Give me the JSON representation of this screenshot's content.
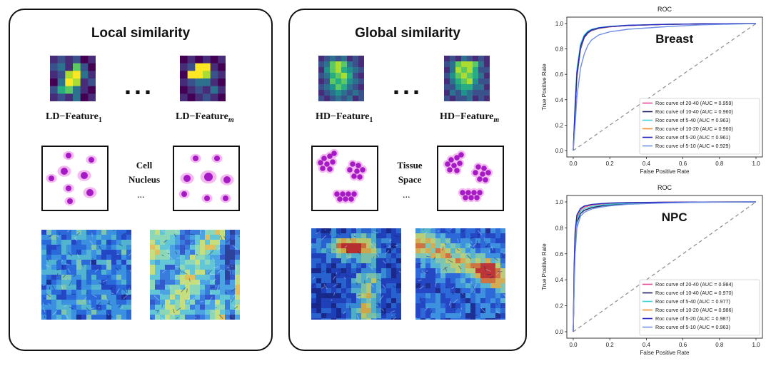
{
  "panels": {
    "local": {
      "title": "Local similarity",
      "dots": "...",
      "feature_label_prefix": "LD−Feature",
      "sub1": "1",
      "subm": "m",
      "mid_lines": [
        "Cell",
        "Nucleus"
      ],
      "mid_ellipsis": "..."
    },
    "global": {
      "title": "Global similarity",
      "dots": "...",
      "feature_label_prefix": "HD−Feature",
      "sub1": "1",
      "subm": "m",
      "mid_lines": [
        "Tissue",
        "Space"
      ],
      "mid_ellipsis": "..."
    }
  },
  "colors": {
    "s2040": "#e7489a",
    "s1040": "#1b1b5e",
    "s540": "#39d4dc",
    "s1020": "#f08a2c",
    "s520": "#1f22c9",
    "s510": "#6f8fe3",
    "diag": "#8c8c8c",
    "nucleus": "#a61ac6",
    "cytoplasm": "#f3b9f0"
  },
  "chart_data": [
    {
      "type": "line",
      "title": "ROC",
      "annotation": "Breast",
      "xlabel": "False Positive Rate",
      "ylabel": "True Positive Rate",
      "xlim": [
        0,
        1
      ],
      "ylim": [
        0,
        1
      ],
      "xticks": [
        "0.0",
        "0.2",
        "0.4",
        "0.6",
        "0.8",
        "1.0"
      ],
      "yticks": [
        "0.0",
        "0.2",
        "0.4",
        "0.6",
        "0.8",
        "1.0"
      ],
      "legend_position": "lower-right",
      "series": [
        {
          "name": "Roc curve of 20-40 (AUC = 0.959)",
          "color_key": "s2040",
          "x": [
            0,
            0.01,
            0.02,
            0.04,
            0.06,
            0.08,
            0.1,
            0.14,
            0.2,
            0.3,
            0.5,
            0.7,
            1.0
          ],
          "y": [
            0,
            0.35,
            0.62,
            0.82,
            0.9,
            0.93,
            0.95,
            0.965,
            0.975,
            0.985,
            0.993,
            0.998,
            1.0
          ]
        },
        {
          "name": "Roc curve of 10-40 (AUC = 0.960)",
          "color_key": "s1040",
          "x": [
            0,
            0.01,
            0.02,
            0.04,
            0.06,
            0.08,
            0.1,
            0.14,
            0.2,
            0.3,
            0.5,
            0.7,
            1.0
          ],
          "y": [
            0,
            0.3,
            0.58,
            0.8,
            0.89,
            0.925,
            0.945,
            0.962,
            0.974,
            0.985,
            0.993,
            0.998,
            1.0
          ]
        },
        {
          "name": "Roc curve of 5-40 (AUC = 0.963)",
          "color_key": "s540",
          "x": [
            0,
            0.01,
            0.02,
            0.04,
            0.06,
            0.08,
            0.1,
            0.14,
            0.2,
            0.3,
            0.5,
            0.7,
            1.0
          ],
          "y": [
            0,
            0.38,
            0.64,
            0.84,
            0.91,
            0.94,
            0.955,
            0.968,
            0.978,
            0.987,
            0.994,
            0.998,
            1.0
          ]
        },
        {
          "name": "Roc curve of 10-20 (AUC = 0.960)",
          "color_key": "s1020",
          "x": [
            0,
            0.01,
            0.02,
            0.04,
            0.06,
            0.08,
            0.1,
            0.14,
            0.2,
            0.3,
            0.5,
            0.7,
            1.0
          ],
          "y": [
            0,
            0.33,
            0.6,
            0.81,
            0.9,
            0.93,
            0.948,
            0.964,
            0.975,
            0.985,
            0.993,
            0.998,
            1.0
          ]
        },
        {
          "name": "Roc curve of 5-20 (AUC = 0.961)",
          "color_key": "s520",
          "x": [
            0,
            0.01,
            0.02,
            0.04,
            0.06,
            0.08,
            0.1,
            0.14,
            0.2,
            0.3,
            0.5,
            0.7,
            1.0
          ],
          "y": [
            0,
            0.34,
            0.61,
            0.82,
            0.9,
            0.932,
            0.95,
            0.966,
            0.976,
            0.986,
            0.993,
            0.998,
            1.0
          ]
        },
        {
          "name": "Roc curve of 5-10 (AUC = 0.929)",
          "color_key": "s510",
          "x": [
            0,
            0.01,
            0.02,
            0.04,
            0.06,
            0.08,
            0.1,
            0.14,
            0.2,
            0.3,
            0.5,
            0.7,
            1.0
          ],
          "y": [
            0,
            0.2,
            0.42,
            0.65,
            0.76,
            0.83,
            0.87,
            0.91,
            0.935,
            0.955,
            0.975,
            0.99,
            1.0
          ]
        }
      ]
    },
    {
      "type": "line",
      "title": "ROC",
      "annotation": "NPC",
      "xlabel": "False Positive Rate",
      "ylabel": "True Positive Rate",
      "xlim": [
        0,
        1
      ],
      "ylim": [
        0,
        1
      ],
      "xticks": [
        "0.0",
        "0.2",
        "0.4",
        "0.6",
        "0.8",
        "1.0"
      ],
      "yticks": [
        "0.0",
        "0.2",
        "0.4",
        "0.6",
        "0.8",
        "1.0"
      ],
      "legend_position": "lower-right",
      "series": [
        {
          "name": "Roc curve of 20-40 (AUC = 0.984)",
          "color_key": "s2040",
          "x": [
            0,
            0.005,
            0.01,
            0.02,
            0.04,
            0.06,
            0.1,
            0.15,
            0.2,
            0.3,
            0.5,
            0.7,
            1.0
          ],
          "y": [
            0,
            0.45,
            0.72,
            0.88,
            0.94,
            0.96,
            0.975,
            0.983,
            0.988,
            0.993,
            0.997,
            0.999,
            1.0
          ]
        },
        {
          "name": "Roc curve of 10-40 (AUC = 0.970)",
          "color_key": "s1040",
          "x": [
            0,
            0.005,
            0.01,
            0.02,
            0.04,
            0.06,
            0.1,
            0.15,
            0.2,
            0.3,
            0.5,
            0.7,
            1.0
          ],
          "y": [
            0,
            0.4,
            0.66,
            0.84,
            0.91,
            0.935,
            0.955,
            0.968,
            0.977,
            0.986,
            0.994,
            0.998,
            1.0
          ]
        },
        {
          "name": "Roc curve of 5-40 (AUC = 0.977)",
          "color_key": "s540",
          "x": [
            0,
            0.005,
            0.01,
            0.02,
            0.04,
            0.06,
            0.1,
            0.15,
            0.2,
            0.3,
            0.5,
            0.7,
            1.0
          ],
          "y": [
            0,
            0.42,
            0.69,
            0.86,
            0.925,
            0.948,
            0.965,
            0.975,
            0.982,
            0.99,
            0.995,
            0.998,
            1.0
          ]
        },
        {
          "name": "Roc curve of 10-20 (AUC = 0.986)",
          "color_key": "s1020",
          "x": [
            0,
            0.005,
            0.01,
            0.02,
            0.04,
            0.06,
            0.1,
            0.15,
            0.2,
            0.3,
            0.5,
            0.7,
            1.0
          ],
          "y": [
            0,
            0.5,
            0.75,
            0.89,
            0.945,
            0.965,
            0.978,
            0.985,
            0.99,
            0.994,
            0.997,
            0.999,
            1.0
          ]
        },
        {
          "name": "Roc curve of 5-20 (AUC = 0.987)",
          "color_key": "s520",
          "x": [
            0,
            0.005,
            0.01,
            0.02,
            0.04,
            0.06,
            0.1,
            0.15,
            0.2,
            0.3,
            0.5,
            0.7,
            1.0
          ],
          "y": [
            0,
            0.52,
            0.77,
            0.9,
            0.95,
            0.968,
            0.98,
            0.987,
            0.991,
            0.995,
            0.998,
            0.999,
            1.0
          ]
        },
        {
          "name": "Roc curve of 5-10 (AUC = 0.963)",
          "color_key": "s510",
          "x": [
            0,
            0.005,
            0.01,
            0.02,
            0.04,
            0.06,
            0.1,
            0.15,
            0.2,
            0.3,
            0.5,
            0.7,
            1.0
          ],
          "y": [
            0,
            0.35,
            0.6,
            0.8,
            0.89,
            0.92,
            0.945,
            0.96,
            0.97,
            0.982,
            0.992,
            0.997,
            1.0
          ]
        }
      ]
    }
  ]
}
